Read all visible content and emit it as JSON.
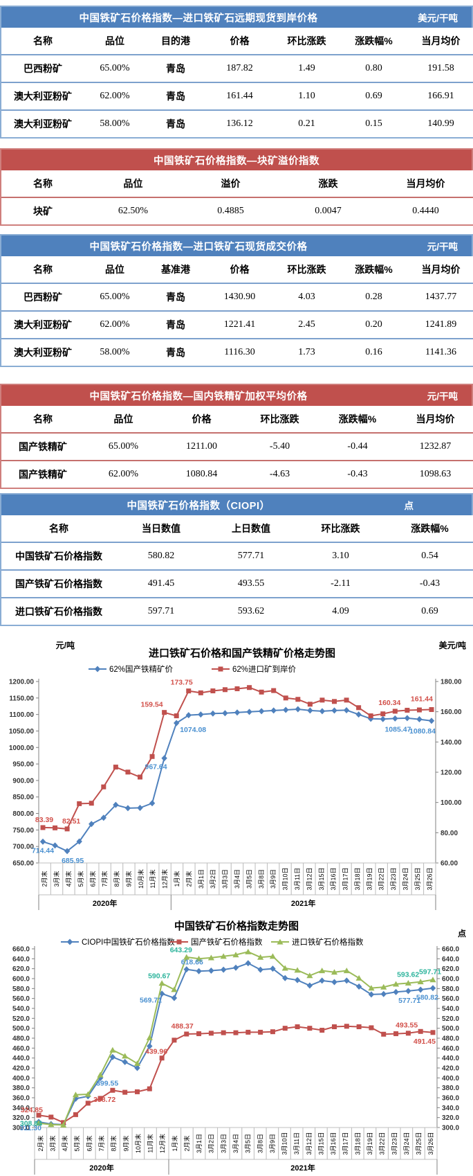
{
  "tables": [
    {
      "title": "中国铁矿石价格指数—进口铁矿石远期现货到岸价格",
      "unit": "美元/干吨",
      "columns": [
        "名称",
        "品位",
        "目的港",
        "价格",
        "环比涨跌",
        "涨跌幅%",
        "当月均价"
      ],
      "rows": [
        [
          "巴西粉矿",
          "65.00%",
          "青岛",
          "187.82",
          "1.49",
          "0.80",
          "191.58"
        ],
        [
          "澳大利亚粉矿",
          "62.00%",
          "青岛",
          "161.44",
          "1.10",
          "0.69",
          "166.91"
        ],
        [
          "澳大利亚粉矿",
          "58.00%",
          "青岛",
          "136.12",
          "0.21",
          "0.15",
          "140.99"
        ]
      ]
    },
    {
      "title": "中国铁矿石价格指数—块矿溢价指数",
      "unit": "",
      "columns": [
        "名称",
        "品位",
        "溢价",
        "涨跌",
        "当月均价"
      ],
      "rows": [
        [
          "块矿",
          "62.50%",
          "0.4885",
          "0.0047",
          "0.4440"
        ]
      ]
    },
    {
      "title": "中国铁矿石价格指数—进口铁矿石现货成交价格",
      "unit": "元/干吨",
      "columns": [
        "名称",
        "品位",
        "基准港",
        "价格",
        "环比涨跌",
        "涨跌幅%",
        "当月均价"
      ],
      "rows": [
        [
          "巴西粉矿",
          "65.00%",
          "青岛",
          "1430.90",
          "4.03",
          "0.28",
          "1437.77"
        ],
        [
          "澳大利亚粉矿",
          "62.00%",
          "青岛",
          "1221.41",
          "2.45",
          "0.20",
          "1241.89"
        ],
        [
          "澳大利亚粉矿",
          "58.00%",
          "青岛",
          "1116.30",
          "1.73",
          "0.16",
          "1141.36"
        ]
      ]
    },
    {
      "title": "中国铁矿石价格指数—国内铁精矿加权平均价格",
      "unit": "元/干吨",
      "columns": [
        "名称",
        "品位",
        "价格",
        "环比涨跌",
        "涨跌幅%",
        "当月均价"
      ],
      "rows": [
        [
          "国产铁精矿",
          "65.00%",
          "1211.00",
          "-5.40",
          "-0.44",
          "1232.87"
        ],
        [
          "国产铁精矿",
          "62.00%",
          "1080.84",
          "-4.63",
          "-0.43",
          "1098.63"
        ]
      ]
    },
    {
      "title": "中国铁矿石价格指数（CIOPI）",
      "unit": "点",
      "columns": [
        "名称",
        "当日数值",
        "上日数值",
        "环比涨跌",
        "涨跌幅%"
      ],
      "rows": [
        [
          "中国铁矿石价格指数",
          "580.82",
          "577.71",
          "3.10",
          "0.54"
        ],
        [
          "国产铁矿石价格指数",
          "491.45",
          "493.55",
          "-2.11",
          "-0.43"
        ],
        [
          "进口铁矿石价格指数",
          "597.71",
          "593.62",
          "4.09",
          "0.69"
        ]
      ]
    }
  ],
  "chart_data": [
    {
      "type": "line",
      "title": "进口铁矿石价格和国产铁精矿价格走势图",
      "left_axis_label": "元/吨",
      "right_axis_label": "美元/吨",
      "left_ylim": [
        650,
        1200
      ],
      "left_step": 50,
      "right_ylim": [
        60,
        180
      ],
      "right_step": 20,
      "tick_decimals": 2,
      "grid": false,
      "legend_position": "top",
      "categories": [
        "2月末",
        "3月末",
        "4月末",
        "5月末",
        "6月末",
        "7月末",
        "8月末",
        "9月末",
        "10月末",
        "11月末",
        "12月末",
        "1月末",
        "2月末",
        "3月1日",
        "3月2日",
        "3月3日",
        "3月4日",
        "3月5日",
        "3月8日",
        "3月9日",
        "3月10日",
        "3月11日",
        "3月12日",
        "3月15日",
        "3月16日",
        "3月17日",
        "3月18日",
        "3月19日",
        "3月22日",
        "3月23日",
        "3月24日",
        "3月25日",
        "3月26日"
      ],
      "year_groups": [
        {
          "label": "2020年",
          "count": 11
        },
        {
          "label": "2021年",
          "count": 22
        }
      ],
      "series": [
        {
          "name": "62%国产铁精矿价",
          "color": "#4f81bd",
          "label_color": "#4a90d0",
          "marker": "diamond",
          "axis": "left",
          "values": [
            714.44,
            703,
            685.95,
            715,
            768,
            787,
            826,
            816,
            817,
            831,
            967.64,
            1074.08,
            1098,
            1100,
            1103,
            1104,
            1106,
            1108,
            1110,
            1112,
            1114,
            1116,
            1112,
            1110,
            1112,
            1113,
            1100,
            1087,
            1086,
            1088,
            1089,
            1085.47,
            1080.84
          ],
          "annotations": [
            {
              "i": 0,
              "t": "714.44",
              "a": "m",
              "dx": 0,
              "dy": 16
            },
            {
              "i": 2,
              "t": "685.95",
              "a": "m",
              "dx": 8,
              "dy": 17
            },
            {
              "i": 10,
              "t": "967.64",
              "a": "e",
              "dx": 4,
              "dy": 16
            },
            {
              "i": 11,
              "t": "1074.08",
              "a": "s",
              "dx": 5,
              "dy": 13
            },
            {
              "i": 31,
              "t": "1085.47",
              "a": "e",
              "dx": -12,
              "dy": 18
            },
            {
              "i": 32,
              "t": "1080.84",
              "a": "e",
              "dx": 6,
              "dy": 18
            }
          ]
        },
        {
          "name": "62%进口矿到岸价",
          "color": "#c0504d",
          "label_color": "#d2504a",
          "marker": "square",
          "axis": "right",
          "values": [
            83.39,
            83.2,
            82.51,
            99.2,
            99.5,
            110.3,
            123.4,
            120.1,
            116.8,
            130.4,
            159.54,
            157.3,
            173.75,
            172.5,
            173.8,
            174.6,
            175.2,
            176.0,
            173.0,
            174.0,
            169.1,
            168.2,
            165.0,
            167.7,
            166.8,
            167.7,
            162.7,
            157.3,
            158.6,
            160.34,
            161.0,
            161.2,
            161.44
          ],
          "annotations": [
            {
              "i": 0,
              "t": "83.39",
              "a": "m",
              "dx": 2,
              "dy": -8
            },
            {
              "i": 2,
              "t": "82.51",
              "a": "m",
              "dx": 6,
              "dy": -8
            },
            {
              "i": 10,
              "t": "159.54",
              "a": "e",
              "dx": -2,
              "dy": -8
            },
            {
              "i": 12,
              "t": "173.75",
              "a": "e",
              "dx": 6,
              "dy": -9
            },
            {
              "i": 29,
              "t": "160.34",
              "a": "m",
              "dx": -8,
              "dy": -9
            },
            {
              "i": 32,
              "t": "161.44",
              "a": "e",
              "dx": 2,
              "dy": -12
            }
          ]
        }
      ]
    },
    {
      "type": "line",
      "title": "中国铁矿石价格指数走势图",
      "left_axis_label": "",
      "right_axis_label": "点",
      "left_ylim": [
        300,
        660
      ],
      "left_step": 20,
      "right_ylim": [
        300,
        660
      ],
      "right_step": 20,
      "tick_decimals": 1,
      "grid": false,
      "legend_position": "top",
      "categories": [
        "2月末",
        "3月末",
        "4月末",
        "5月末",
        "6月末",
        "7月末",
        "8月末",
        "9月末",
        "10月末",
        "11月末",
        "12月末",
        "1月末",
        "2月末",
        "3月1日",
        "3月2日",
        "3月3日",
        "3月4日",
        "3月5日",
        "3月8日",
        "3月9日",
        "3月10日",
        "3月11日",
        "3月12日",
        "3月15日",
        "3月16日",
        "3月17日",
        "3月18日",
        "3月19日",
        "3月22日",
        "3月23日",
        "3月24日",
        "3月25日",
        "3月26日"
      ],
      "year_groups": [
        {
          "label": "2020年",
          "count": 11
        },
        {
          "label": "2021年",
          "count": 22
        }
      ],
      "series": [
        {
          "name": "CIOPI中国铁矿石价格指数",
          "color": "#4f81bd",
          "label_color": "#4a90d0",
          "marker": "diamond",
          "axis": "left",
          "values": [
            311.3,
            307,
            306,
            358,
            363,
            399.55,
            442,
            432,
            420,
            464,
            569.71,
            561,
            618.66,
            615,
            616,
            618,
            622,
            631,
            618,
            620,
            601,
            597,
            586,
            596,
            593,
            596,
            584,
            568,
            569,
            573,
            575,
            577.71,
            580.82
          ],
          "annotations": [
            {
              "i": 0,
              "t": "311.30",
              "a": "e",
              "dx": 4,
              "dy": 12
            },
            {
              "i": 5,
              "t": "399.55",
              "a": "s",
              "dx": -6,
              "dy": 11
            },
            {
              "i": 10,
              "t": "569.71",
              "a": "e",
              "dx": 0,
              "dy": 13
            },
            {
              "i": 12,
              "t": "618.66",
              "a": "m",
              "dx": 8,
              "dy": -7
            },
            {
              "i": 31,
              "t": "577.71",
              "a": "e",
              "dx": 0,
              "dy": 19
            },
            {
              "i": 32,
              "t": "580.82",
              "a": "e",
              "dx": 8,
              "dy": 17
            }
          ]
        },
        {
          "name": "国产铁矿石价格指数",
          "color": "#c0504d",
          "label_color": "#d2504a",
          "marker": "square",
          "axis": "left",
          "values": [
            324.85,
            321,
            310,
            326,
            349,
            358.72,
            375,
            371,
            372,
            378,
            439.96,
            476,
            488.37,
            489,
            490,
            491,
            491,
            492,
            492,
            493,
            500,
            503,
            500,
            496,
            503,
            504,
            503,
            501,
            488,
            489,
            490,
            493.55,
            491.45
          ],
          "annotations": [
            {
              "i": 0,
              "t": "324.85",
              "a": "e",
              "dx": 6,
              "dy": -4
            },
            {
              "i": 5,
              "t": "358.72",
              "a": "s",
              "dx": -10,
              "dy": 5
            },
            {
              "i": 10,
              "t": "439.96",
              "a": "e",
              "dx": 8,
              "dy": -6
            },
            {
              "i": 12,
              "t": "488.37",
              "a": "e",
              "dx": 10,
              "dy": -8
            },
            {
              "i": 31,
              "t": "493.55",
              "a": "e",
              "dx": -4,
              "dy": -6
            },
            {
              "i": 32,
              "t": "491.45",
              "a": "e",
              "dx": 4,
              "dy": 16
            }
          ]
        },
        {
          "name": "进口铁矿石价格指数",
          "color": "#9bbb59",
          "label_color": "#2db49c",
          "marker": "triangle",
          "axis": "left",
          "values": [
            308.84,
            306,
            305,
            366,
            367,
            406,
            456,
            444,
            429,
            481,
            590.67,
            578,
            643.29,
            640,
            642,
            645,
            648,
            654,
            643,
            645,
            621,
            617,
            606,
            616,
            613,
            616,
            601,
            581,
            583,
            589,
            591,
            593.62,
            597.71
          ],
          "annotations": [
            {
              "i": 0,
              "t": "308.84",
              "a": "e",
              "dx": 5,
              "dy": 4
            },
            {
              "i": 10,
              "t": "590.67",
              "a": "m",
              "dx": -4,
              "dy": -7
            },
            {
              "i": 12,
              "t": "643.29",
              "a": "m",
              "dx": -8,
              "dy": -7
            },
            {
              "i": 31,
              "t": "593.62",
              "a": "e",
              "dx": -2,
              "dy": -7
            },
            {
              "i": 32,
              "t": "597.71",
              "a": "m",
              "dx": -4,
              "dy": -8
            }
          ]
        }
      ]
    }
  ]
}
